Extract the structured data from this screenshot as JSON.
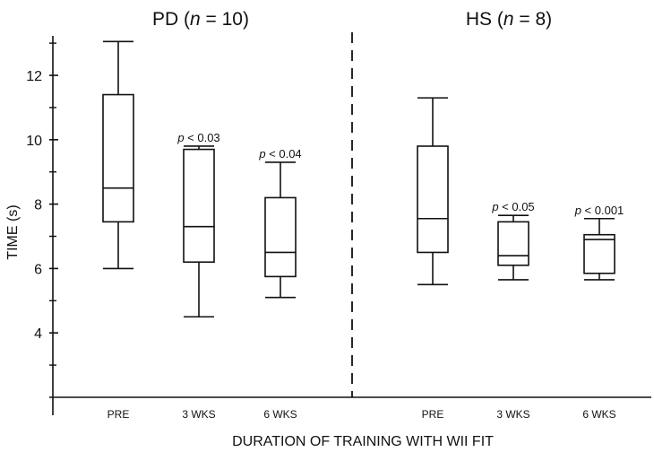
{
  "chart_data": {
    "type": "boxplot",
    "xlabel": "DURATION OF TRAINING WITH WII FIT",
    "ylabel": "TIME (s)",
    "ylim": [
      2,
      13.2
    ],
    "yticks_labeled": [
      4,
      6,
      8,
      10,
      12
    ],
    "yticks_minor": [
      3,
      5,
      7,
      9,
      11,
      13
    ],
    "panels": [
      {
        "title_main": "PD (",
        "title_n": "n",
        "title_rest": " = 10)",
        "groups": [
          {
            "category": "PRE",
            "min": 6.0,
            "q1": 7.45,
            "median": 8.5,
            "q3": 11.4,
            "max": 13.05,
            "annotation": ""
          },
          {
            "category": "3 WKS",
            "min": 4.5,
            "q1": 6.2,
            "median": 7.3,
            "q3": 9.7,
            "max": 9.8,
            "annotation_p": "p",
            "annotation": " < 0.03"
          },
          {
            "category": "6 WKS",
            "min": 5.1,
            "q1": 5.75,
            "median": 6.5,
            "q3": 8.2,
            "max": 9.3,
            "annotation_p": "p",
            "annotation": " < 0.04"
          }
        ]
      },
      {
        "title_main": "HS (",
        "title_n": "n",
        "title_rest": " = 8)",
        "groups": [
          {
            "category": "PRE",
            "min": 5.5,
            "q1": 6.5,
            "median": 7.55,
            "q3": 9.8,
            "max": 11.3,
            "annotation": ""
          },
          {
            "category": "3 WKS",
            "min": 5.65,
            "q1": 6.1,
            "median": 6.4,
            "q3": 7.45,
            "max": 7.65,
            "annotation_p": "p",
            "annotation": " < 0.05"
          },
          {
            "category": "6 WKS",
            "min": 5.65,
            "q1": 5.85,
            "median": 6.9,
            "q3": 7.05,
            "max": 7.55,
            "annotation_p": "p",
            "annotation": " < 0.001"
          }
        ]
      }
    ],
    "divider": "dashed vertical line between panels",
    "grid": false
  }
}
